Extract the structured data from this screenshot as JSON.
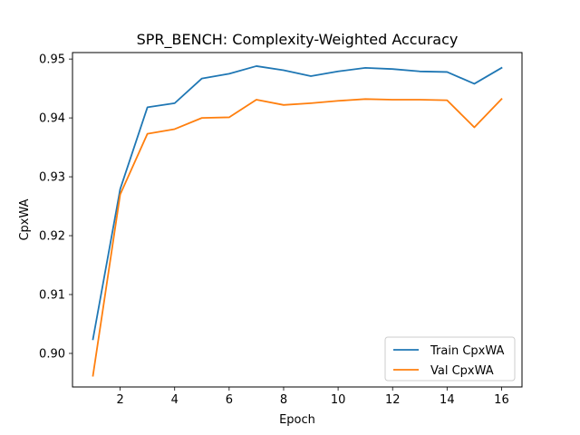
{
  "chart_data": {
    "type": "line",
    "title": "SPR_BENCH: Complexity-Weighted Accuracy",
    "xlabel": "Epoch",
    "ylabel": "CpxWA",
    "x": [
      1,
      2,
      3,
      4,
      5,
      6,
      7,
      8,
      9,
      10,
      11,
      12,
      13,
      14,
      15,
      16
    ],
    "xlim": [
      0.25,
      16.75
    ],
    "ylim": [
      0.8943,
      0.9511
    ],
    "xticks": [
      2,
      4,
      6,
      8,
      10,
      12,
      14,
      16
    ],
    "yticks": [
      0.9,
      0.91,
      0.92,
      0.93,
      0.94,
      0.95
    ],
    "ytick_labels": [
      "0.90",
      "0.91",
      "0.92",
      "0.93",
      "0.94",
      "0.95"
    ],
    "series": [
      {
        "name": "Train CpxWA",
        "color": "#1f77b4",
        "values": [
          0.9024,
          0.9279,
          0.9418,
          0.9425,
          0.9467,
          0.9475,
          0.9488,
          0.9481,
          0.9471,
          0.9479,
          0.9485,
          0.9483,
          0.9479,
          0.9478,
          0.9458,
          0.9485
        ]
      },
      {
        "name": "Val CpxWA",
        "color": "#ff7f0e",
        "values": [
          0.8962,
          0.927,
          0.9373,
          0.9381,
          0.94,
          0.9401,
          0.9431,
          0.9422,
          0.9425,
          0.9429,
          0.9432,
          0.9431,
          0.9431,
          0.943,
          0.9384,
          0.9432
        ]
      }
    ],
    "grid": false,
    "legend_position": "lower right"
  }
}
